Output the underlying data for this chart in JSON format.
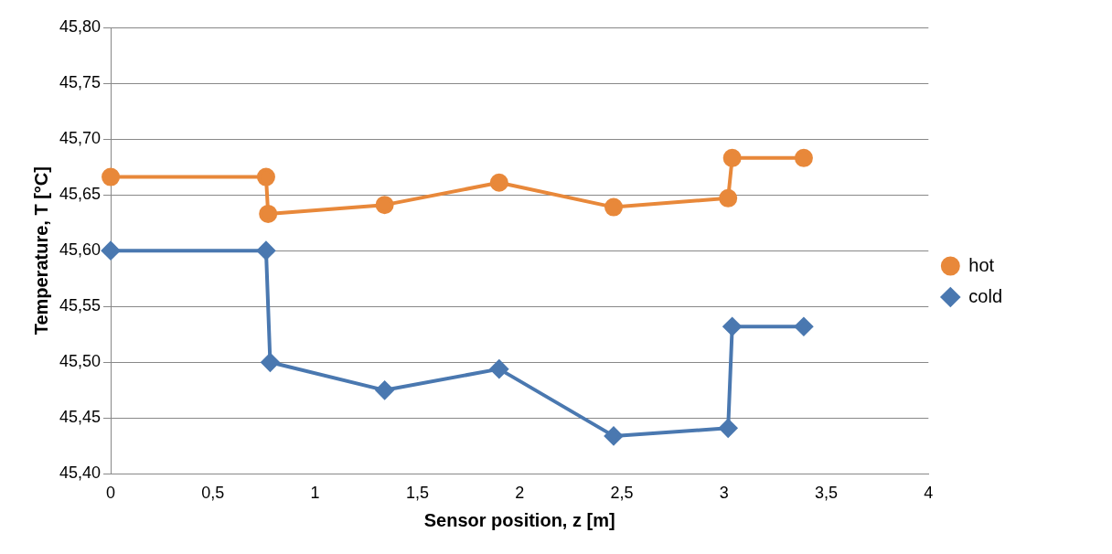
{
  "chart_data": {
    "type": "line",
    "xlabel": "Sensor position, z [m]",
    "ylabel": "Temperature, T [°C]",
    "series": [
      {
        "name": "hot",
        "color": "#e8883a",
        "marker": "circle",
        "x": [
          0,
          0.76,
          0.77,
          1.34,
          1.9,
          2.46,
          3.02,
          3.04,
          3.39
        ],
        "values": [
          45.666,
          45.666,
          45.633,
          45.641,
          45.661,
          45.639,
          45.647,
          45.683,
          45.683
        ]
      },
      {
        "name": "cold",
        "color": "#4a78b0",
        "marker": "diamond",
        "x": [
          0,
          0.76,
          0.78,
          1.34,
          1.9,
          2.46,
          3.02,
          3.04,
          3.39
        ],
        "values": [
          45.6,
          45.6,
          45.5,
          45.475,
          45.494,
          45.434,
          45.441,
          45.532,
          45.532
        ]
      }
    ],
    "xlim": [
      0,
      4
    ],
    "xticks": [
      0,
      {
        "value": 0.5,
        "label": "0,5"
      },
      1,
      {
        "value": 1.5,
        "label": "1,5"
      },
      2,
      {
        "value": 2.5,
        "label": "2,5"
      },
      3,
      {
        "value": 3.5,
        "label": "3,5"
      },
      4
    ],
    "ylim": [
      45.4,
      45.8
    ],
    "yticks": [
      {
        "value": 45.4,
        "label": "45,40"
      },
      {
        "value": 45.45,
        "label": "45,45"
      },
      {
        "value": 45.5,
        "label": "45,50"
      },
      {
        "value": 45.55,
        "label": "45,55"
      },
      {
        "value": 45.6,
        "label": "45,60"
      },
      {
        "value": 45.65,
        "label": "45,65"
      },
      {
        "value": 45.7,
        "label": "45,70"
      },
      {
        "value": 45.75,
        "label": "45,75"
      },
      {
        "value": 45.8,
        "label": "45,80"
      }
    ],
    "grid": "y",
    "legend": "right",
    "line_style": "solid"
  }
}
